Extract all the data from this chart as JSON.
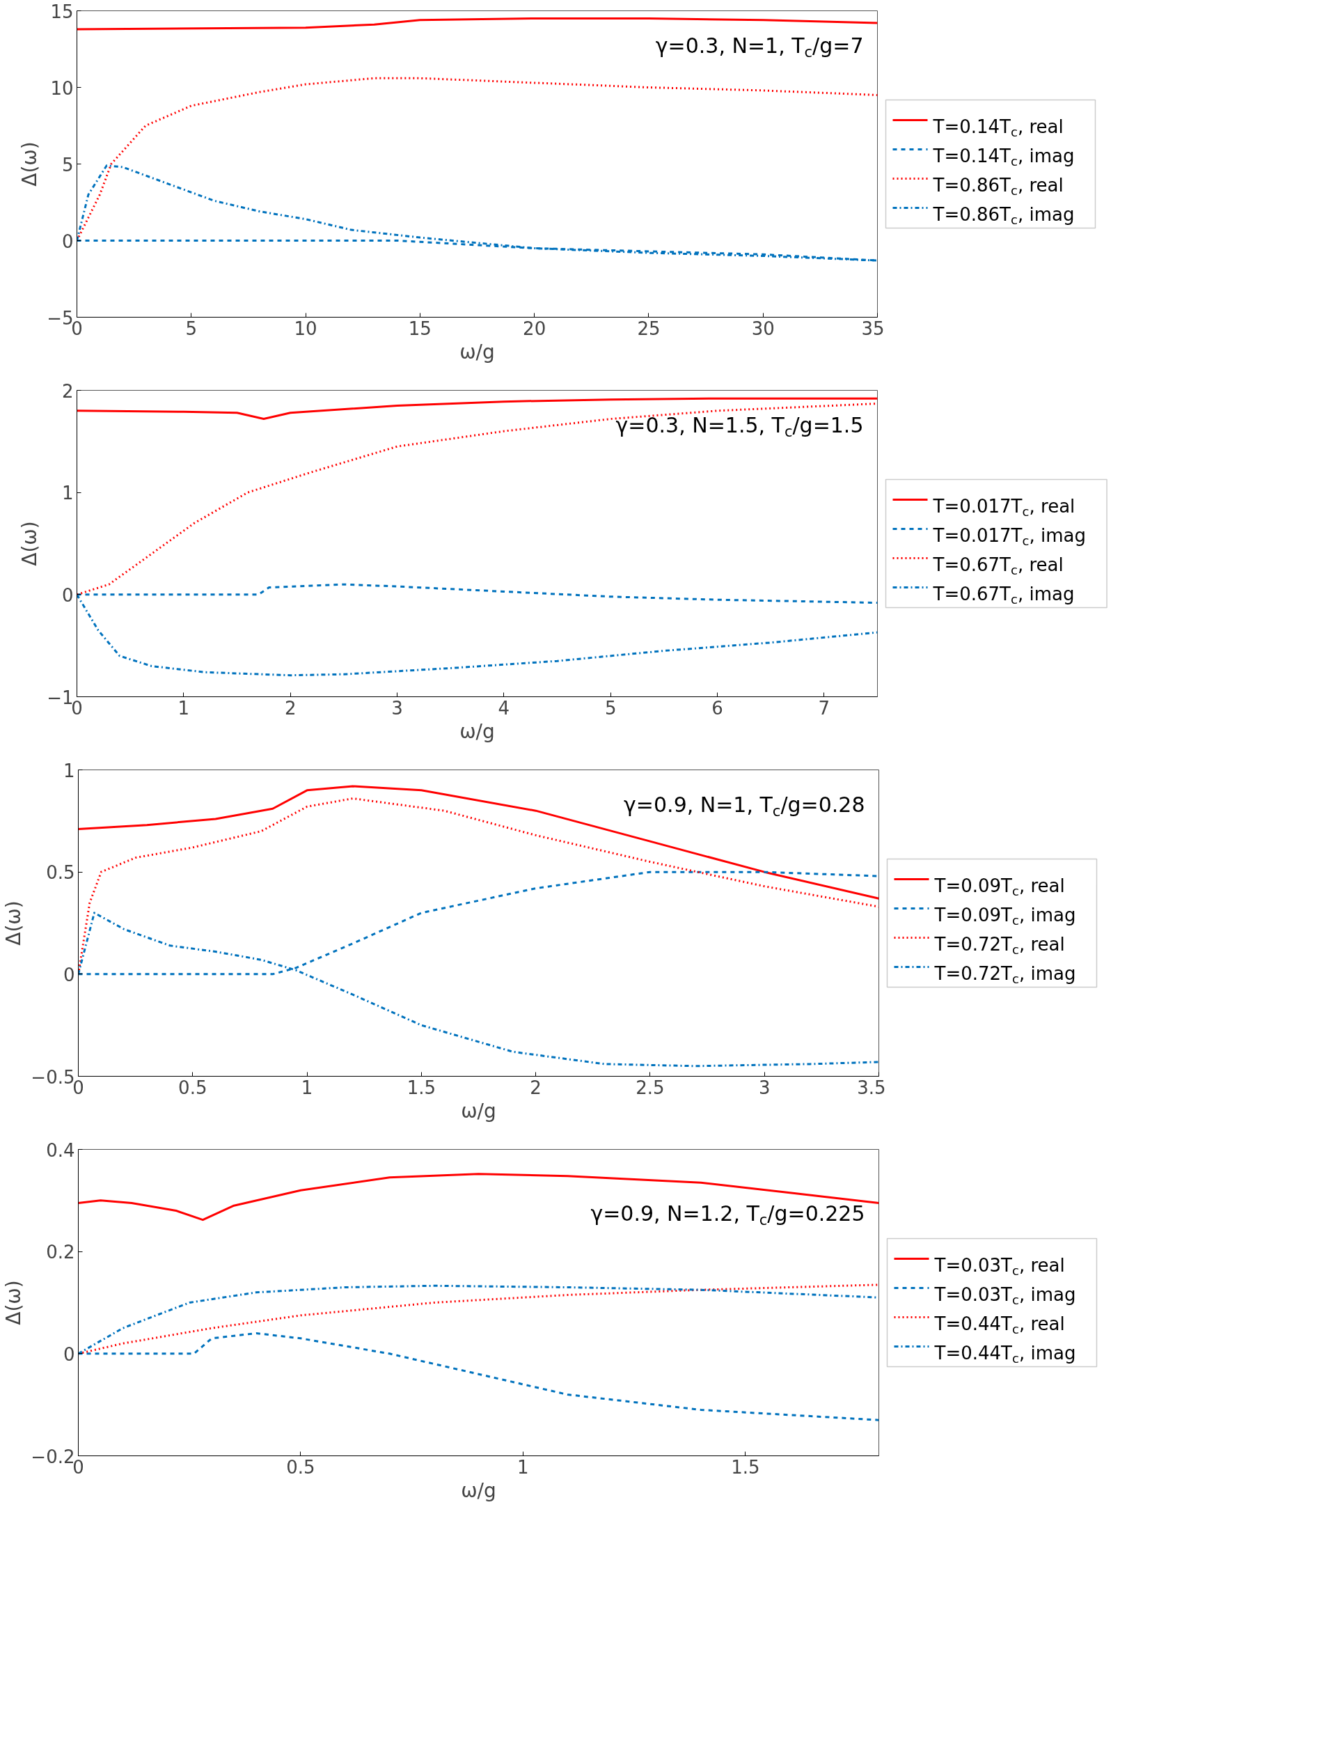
{
  "chart_data": [
    {
      "type": "line",
      "xlabel": "ω/g",
      "ylabel": "Δ(ω)",
      "annotations": [
        "γ=0.3, N=1, T$_{c}$/g=7"
      ],
      "xlim": [
        0,
        35
      ],
      "ylim": [
        -5,
        15
      ],
      "xticks": [
        0,
        5,
        10,
        15,
        20,
        25,
        30,
        35
      ],
      "yticks": [
        -5,
        0,
        5,
        10,
        15
      ],
      "legend": "right",
      "series": [
        {
          "name": "T=0.14T$_{c}$, real",
          "color": "#ff0000",
          "line_style": "solid",
          "x": [
            0,
            10,
            13,
            15,
            20,
            25,
            30,
            35
          ],
          "values": [
            13.8,
            13.9,
            14.1,
            14.4,
            14.5,
            14.5,
            14.4,
            14.2
          ]
        },
        {
          "name": "T=0.14T$_{c}$, imag",
          "color": "#0072bd",
          "line_style": "dashed",
          "x": [
            0,
            14,
            20,
            25,
            30,
            35
          ],
          "values": [
            0,
            0,
            -0.5,
            -0.7,
            -0.9,
            -1.3
          ]
        },
        {
          "name": "T=0.86T$_{c}$, real",
          "color": "#ff0000",
          "line_style": "dotted",
          "x": [
            0,
            1,
            1.5,
            3,
            5,
            8,
            10,
            13,
            15,
            20,
            25,
            30,
            35
          ],
          "values": [
            0,
            3,
            5,
            7.5,
            8.8,
            9.7,
            10.2,
            10.6,
            10.6,
            10.3,
            10.0,
            9.8,
            9.5
          ]
        },
        {
          "name": "T=0.86T$_{c}$, imag",
          "color": "#0072bd",
          "line_style": "dashdot",
          "x": [
            0,
            0.5,
            1.3,
            2,
            4,
            6,
            8,
            10,
            12,
            15,
            20,
            25,
            30,
            35
          ],
          "values": [
            0,
            3,
            4.9,
            4.8,
            3.7,
            2.6,
            1.9,
            1.4,
            0.7,
            0.2,
            -0.5,
            -0.8,
            -1.0,
            -1.3
          ]
        }
      ]
    },
    {
      "type": "line",
      "xlabel": "ω/g",
      "ylabel": "Δ(ω)",
      "annotations": [
        "γ=0.3, N=1.5, T$_{c}$/g=1.5"
      ],
      "xlim": [
        0,
        7.5
      ],
      "ylim": [
        -1,
        2
      ],
      "xticks": [
        0,
        1,
        2,
        3,
        4,
        5,
        6,
        7
      ],
      "yticks": [
        -1,
        0,
        1,
        2
      ],
      "legend": "right",
      "series": [
        {
          "name": "T=0.017T$_{c}$, real",
          "color": "#ff0000",
          "line_style": "solid",
          "x": [
            0,
            1,
            1.5,
            1.75,
            2,
            3,
            4,
            5,
            6,
            7.5
          ],
          "values": [
            1.8,
            1.79,
            1.78,
            1.72,
            1.78,
            1.85,
            1.89,
            1.91,
            1.92,
            1.92
          ]
        },
        {
          "name": "T=0.017T$_{c}$, imag",
          "color": "#0072bd",
          "line_style": "dashed",
          "x": [
            0,
            1.7,
            1.8,
            2.5,
            3,
            4,
            5,
            6,
            7.5
          ],
          "values": [
            0,
            0,
            0.07,
            0.1,
            0.08,
            0.03,
            -0.02,
            -0.05,
            -0.08
          ]
        },
        {
          "name": "T=0.67T$_{c}$, real",
          "color": "#ff0000",
          "line_style": "dotted",
          "x": [
            0,
            0.3,
            0.7,
            1.1,
            1.6,
            2.2,
            3,
            4,
            5,
            6,
            7.5
          ],
          "values": [
            0,
            0.1,
            0.4,
            0.7,
            1.0,
            1.2,
            1.45,
            1.6,
            1.72,
            1.8,
            1.87
          ]
        },
        {
          "name": "T=0.67T$_{c}$, imag",
          "color": "#0072bd",
          "line_style": "dashdot",
          "x": [
            0,
            0.2,
            0.4,
            0.7,
            1.2,
            2,
            2.5,
            3.5,
            4.5,
            5.5,
            6.5,
            7.5
          ],
          "values": [
            0,
            -0.35,
            -0.6,
            -0.7,
            -0.76,
            -0.79,
            -0.78,
            -0.72,
            -0.65,
            -0.55,
            -0.47,
            -0.37
          ]
        }
      ]
    },
    {
      "type": "line",
      "xlabel": "ω/g",
      "ylabel": "Δ(ω)",
      "annotations": [
        "γ=0.9, N=1, T$_{c}$/g=0.28"
      ],
      "xlim": [
        0,
        3.5
      ],
      "ylim": [
        -0.5,
        1
      ],
      "xticks": [
        0,
        0.5,
        1,
        1.5,
        2,
        2.5,
        3,
        3.5
      ],
      "yticks": [
        -0.5,
        0,
        0.5,
        1
      ],
      "legend": "right",
      "series": [
        {
          "name": "T=0.09T$_{c}$, real",
          "color": "#ff0000",
          "line_style": "solid",
          "x": [
            0,
            0.3,
            0.6,
            0.85,
            1,
            1.2,
            1.5,
            2,
            2.5,
            3,
            3.5
          ],
          "values": [
            0.71,
            0.73,
            0.76,
            0.81,
            0.9,
            0.92,
            0.9,
            0.8,
            0.65,
            0.5,
            0.37
          ]
        },
        {
          "name": "T=0.09T$_{c}$, imag",
          "color": "#0072bd",
          "line_style": "dashed",
          "x": [
            0,
            0.85,
            0.95,
            1.2,
            1.5,
            2,
            2.5,
            3,
            3.5
          ],
          "values": [
            0,
            0,
            0.03,
            0.15,
            0.3,
            0.42,
            0.5,
            0.5,
            0.48
          ]
        },
        {
          "name": "T=0.72T$_{c}$, real",
          "color": "#ff0000",
          "line_style": "dotted",
          "x": [
            0,
            0.05,
            0.1,
            0.25,
            0.5,
            0.8,
            1,
            1.2,
            1.6,
            2,
            2.5,
            3,
            3.5
          ],
          "values": [
            0,
            0.35,
            0.5,
            0.57,
            0.62,
            0.7,
            0.82,
            0.86,
            0.8,
            0.68,
            0.55,
            0.43,
            0.33
          ]
        },
        {
          "name": "T=0.72T$_{c}$, imag",
          "color": "#0072bd",
          "line_style": "dashdot",
          "x": [
            0,
            0.07,
            0.2,
            0.4,
            0.6,
            0.8,
            0.95,
            1.2,
            1.5,
            1.9,
            2.3,
            2.7,
            3.2,
            3.5
          ],
          "values": [
            0,
            0.3,
            0.22,
            0.14,
            0.11,
            0.07,
            0.02,
            -0.1,
            -0.25,
            -0.38,
            -0.44,
            -0.45,
            -0.44,
            -0.43
          ]
        }
      ]
    },
    {
      "type": "line",
      "xlabel": "ω/g",
      "ylabel": "Δ(ω)",
      "annotations": [
        "γ=0.9, N=1.2, T$_{c}$/g=0.225"
      ],
      "xlim": [
        0,
        1.8
      ],
      "ylim": [
        -0.2,
        0.4
      ],
      "xticks": [
        0,
        0.5,
        1,
        1.5
      ],
      "yticks": [
        -0.2,
        0,
        0.2,
        0.4
      ],
      "legend": "right",
      "series": [
        {
          "name": "T=0.03T$_{c}$, real",
          "color": "#ff0000",
          "line_style": "solid",
          "x": [
            0,
            0.05,
            0.12,
            0.22,
            0.28,
            0.35,
            0.5,
            0.7,
            0.9,
            1.1,
            1.4,
            1.6,
            1.8
          ],
          "values": [
            0.295,
            0.3,
            0.295,
            0.28,
            0.262,
            0.29,
            0.32,
            0.345,
            0.352,
            0.348,
            0.335,
            0.315,
            0.295
          ]
        },
        {
          "name": "T=0.03T$_{c}$, imag",
          "color": "#0072bd",
          "line_style": "dashed",
          "x": [
            0,
            0.26,
            0.3,
            0.4,
            0.5,
            0.7,
            0.9,
            1.1,
            1.4,
            1.8
          ],
          "values": [
            0,
            0,
            0.03,
            0.04,
            0.03,
            0.0,
            -0.04,
            -0.08,
            -0.11,
            -0.13
          ]
        },
        {
          "name": "T=0.44T$_{c}$, real",
          "color": "#ff0000",
          "line_style": "dotted",
          "x": [
            0,
            0.1,
            0.3,
            0.5,
            0.8,
            1.1,
            1.4,
            1.8
          ],
          "values": [
            0,
            0.02,
            0.05,
            0.075,
            0.1,
            0.115,
            0.125,
            0.135
          ]
        },
        {
          "name": "T=0.44T$_{c}$, imag",
          "color": "#0072bd",
          "line_style": "dashdot",
          "x": [
            0,
            0.1,
            0.25,
            0.4,
            0.6,
            0.8,
            1.1,
            1.4,
            1.8
          ],
          "values": [
            0,
            0.05,
            0.1,
            0.12,
            0.13,
            0.133,
            0.13,
            0.125,
            0.11
          ]
        }
      ]
    }
  ]
}
